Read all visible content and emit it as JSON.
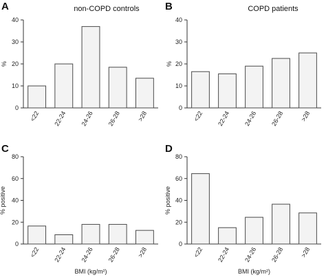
{
  "chart_data": [
    {
      "panel": "A",
      "type": "bar",
      "title": "non-COPD controls",
      "ylabel": "%",
      "xlabel": "",
      "categories": [
        "<22",
        "22-24",
        "24-26",
        "26-28",
        ">28"
      ],
      "values": [
        10,
        20,
        37,
        18.5,
        13.5
      ],
      "ylim": [
        0,
        40
      ],
      "yticks": [
        0,
        10,
        20,
        30,
        40
      ],
      "grid": false
    },
    {
      "panel": "B",
      "type": "bar",
      "title": "COPD patients",
      "ylabel": "%",
      "xlabel": "",
      "categories": [
        "<22",
        "22-24",
        "24-26",
        "26-28",
        ">28"
      ],
      "values": [
        16.5,
        15.5,
        19,
        22.5,
        25
      ],
      "ylim": [
        0,
        40
      ],
      "yticks": [
        0,
        10,
        20,
        30,
        40
      ],
      "grid": false
    },
    {
      "panel": "C",
      "type": "bar",
      "title": "",
      "ylabel": "% positive",
      "xlabel": "BMI (kg/m²)",
      "categories": [
        "<22",
        "22-24",
        "24-26",
        "26-28",
        ">28"
      ],
      "values": [
        16.5,
        8.5,
        18,
        18,
        12.5
      ],
      "ylim": [
        0,
        80
      ],
      "yticks": [
        0,
        20,
        40,
        60,
        80
      ],
      "grid": false
    },
    {
      "panel": "D",
      "type": "bar",
      "title": "",
      "ylabel": "% positive",
      "xlabel": "BMI (kg/m²)",
      "categories": [
        "<22",
        "22-24",
        "24-26",
        "26-28",
        ">28"
      ],
      "values": [
        64.5,
        15,
        24.5,
        36.5,
        28.5
      ],
      "ylim": [
        0,
        80
      ],
      "yticks": [
        0,
        20,
        40,
        60,
        80
      ],
      "grid": false
    }
  ]
}
